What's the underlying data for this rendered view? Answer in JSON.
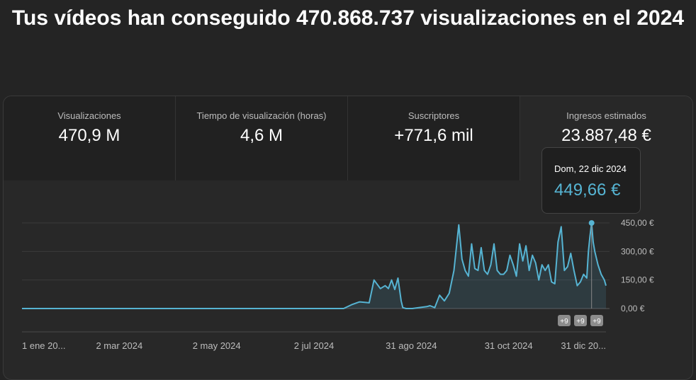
{
  "page": {
    "headline": "Tus vídeos han conseguido 470.868.737 visualizaciones en el 2024"
  },
  "metrics": [
    {
      "label": "Visualizaciones",
      "value": "470,9 M"
    },
    {
      "label": "Tiempo de visualización (horas)",
      "value": "4,6 M"
    },
    {
      "label": "Suscriptores",
      "value": "+771,6 mil"
    },
    {
      "label": "Ingresos estimados",
      "value": "23.887,48 €"
    }
  ],
  "tooltip": {
    "date": "Dom, 22 dic 2024",
    "value": "449,66 €"
  },
  "badges": [
    "+9",
    "+9",
    "+9"
  ],
  "colors": {
    "line": "#56b4d3",
    "background": "#242424"
  },
  "chart_data": {
    "type": "area",
    "x_ticks": [
      "1 ene 20...",
      "2 mar 2024",
      "2 may 2024",
      "2 jul 2024",
      "31 ago 2024",
      "31 oct 2024",
      "31 dic 20..."
    ],
    "y_ticks": [
      "0,00 €",
      "150,00 €",
      "300,00 €",
      "450,00 €"
    ],
    "ylim": [
      0,
      450
    ],
    "x_range": [
      "2024-01-01",
      "2024-12-31"
    ],
    "grid": true,
    "highlight": {
      "x": "2024-12-22",
      "y": 449.66
    },
    "series": [
      {
        "x": [
          "2024-01-01",
          "2024-02-01",
          "2024-03-01",
          "2024-04-01",
          "2024-05-01",
          "2024-06-01",
          "2024-07-01",
          "2024-07-20",
          "2024-07-25",
          "2024-07-30",
          "2024-08-05",
          "2024-08-08",
          "2024-08-12",
          "2024-08-15",
          "2024-08-17",
          "2024-08-19",
          "2024-08-21",
          "2024-08-23",
          "2024-08-25",
          "2024-08-26",
          "2024-08-28",
          "2024-08-30",
          "2024-09-01",
          "2024-09-05",
          "2024-09-10",
          "2024-09-12",
          "2024-09-15",
          "2024-09-18",
          "2024-09-21",
          "2024-09-24",
          "2024-09-27",
          "2024-09-30",
          "2024-10-02",
          "2024-10-04",
          "2024-10-06",
          "2024-10-08",
          "2024-10-10",
          "2024-10-12",
          "2024-10-14",
          "2024-10-16",
          "2024-10-18",
          "2024-10-20",
          "2024-10-22",
          "2024-10-24",
          "2024-10-26",
          "2024-10-28",
          "2024-10-30",
          "2024-11-01",
          "2024-11-03",
          "2024-11-05",
          "2024-11-07",
          "2024-11-09",
          "2024-11-11",
          "2024-11-13",
          "2024-11-15",
          "2024-11-17",
          "2024-11-19",
          "2024-11-21",
          "2024-11-23",
          "2024-11-25",
          "2024-11-27",
          "2024-11-29",
          "2024-12-01",
          "2024-12-03",
          "2024-12-05",
          "2024-12-07",
          "2024-12-09",
          "2024-12-11",
          "2024-12-13",
          "2024-12-15",
          "2024-12-17",
          "2024-12-19",
          "2024-12-20",
          "2024-12-21",
          "2024-12-22",
          "2024-12-23",
          "2024-12-24",
          "2024-12-26",
          "2024-12-28",
          "2024-12-30",
          "2024-12-31"
        ],
        "y": [
          0,
          0,
          0,
          0,
          0,
          0,
          0,
          0,
          20,
          35,
          30,
          150,
          105,
          120,
          105,
          150,
          100,
          160,
          40,
          5,
          0,
          0,
          0,
          5,
          10,
          15,
          5,
          70,
          40,
          80,
          200,
          440,
          260,
          200,
          170,
          340,
          210,
          200,
          320,
          200,
          180,
          230,
          340,
          200,
          180,
          180,
          200,
          280,
          230,
          170,
          340,
          250,
          330,
          200,
          280,
          240,
          150,
          230,
          200,
          230,
          140,
          130,
          350,
          430,
          200,
          220,
          290,
          200,
          120,
          140,
          180,
          160,
          300,
          380,
          449.66,
          350,
          300,
          230,
          180,
          150,
          120
        ]
      }
    ]
  }
}
